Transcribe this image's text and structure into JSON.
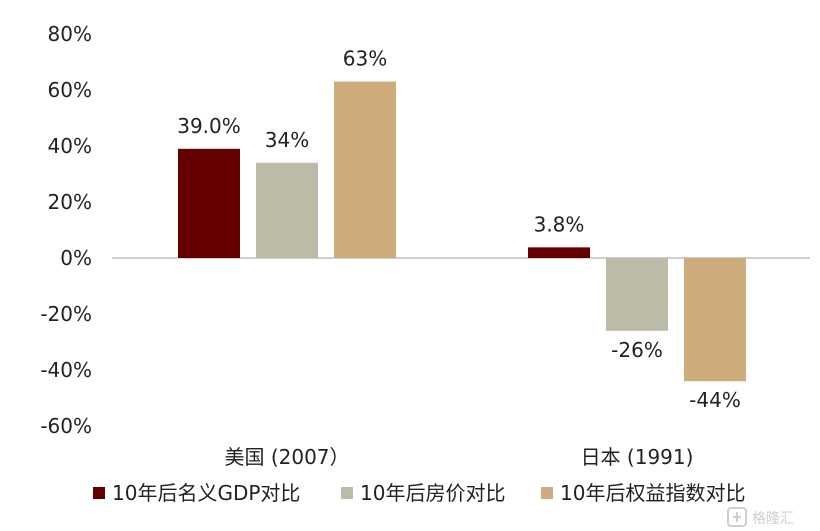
{
  "chart_data": {
    "type": "bar",
    "categories": [
      "美国 (2007）",
      "日本 (1991)"
    ],
    "series": [
      {
        "name": "10年后名义GDP对比",
        "values": [
          39.0,
          3.8
        ],
        "labels": [
          "39.0%",
          "3.8%"
        ],
        "color": "#650000"
      },
      {
        "name": "10年后房价对比",
        "values": [
          34,
          -26
        ],
        "labels": [
          "34%",
          "-26%"
        ],
        "color": "#bbbba8"
      },
      {
        "name": "10年后权益指数对比",
        "values": [
          63,
          -44
        ],
        "labels": [
          "63%",
          "-44%"
        ],
        "color": "#ceab7b"
      }
    ],
    "y_ticks": [
      "80%",
      "60%",
      "40%",
      "20%",
      "0%",
      "-20%",
      "-40%",
      "-60%"
    ],
    "ylim": [
      -60,
      80
    ],
    "grid": false,
    "legend_position": "bottom"
  },
  "watermark": {
    "text": "格隆汇",
    "icon": "logo-icon"
  }
}
